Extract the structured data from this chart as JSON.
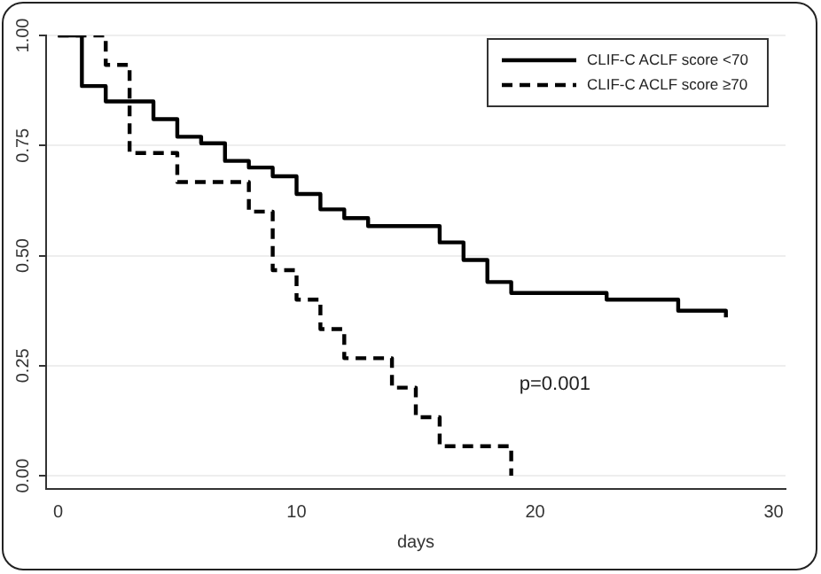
{
  "chart_data": {
    "type": "step",
    "xlabel": "days",
    "series": [
      {
        "name": "CLIF-C ACLF score <70",
        "color": "#000000",
        "line_style": "solid",
        "x": [
          0,
          1,
          2,
          4,
          5,
          6,
          7,
          8,
          9,
          10,
          11,
          12,
          13,
          16,
          17,
          18,
          19,
          23,
          26,
          28
        ],
        "values": [
          1.0,
          0.885,
          0.85,
          0.81,
          0.77,
          0.755,
          0.715,
          0.7,
          0.68,
          0.64,
          0.605,
          0.585,
          0.567,
          0.53,
          0.49,
          0.44,
          0.415,
          0.4,
          0.375,
          0.36
        ]
      },
      {
        "name": "CLIF-C ACLF score ≥70",
        "color": "#000000",
        "line_style": "dashed",
        "x": [
          0,
          2,
          3,
          5,
          8,
          9,
          10,
          11,
          12,
          14,
          15,
          16,
          19
        ],
        "values": [
          1.0,
          0.933,
          0.733,
          0.667,
          0.6,
          0.467,
          0.4,
          0.333,
          0.267,
          0.2,
          0.133,
          0.067,
          0.0
        ]
      }
    ],
    "xlim": [
      -0.5,
      30.5
    ],
    "xticks": [
      0,
      10,
      20,
      30
    ],
    "ylim": [
      -0.03,
      1.0
    ],
    "yticks": [
      {
        "value": 0,
        "label": "0.00"
      },
      {
        "value": 0.25,
        "label": "0.25"
      },
      {
        "value": 0.5,
        "label": "0.50"
      },
      {
        "value": 0.75,
        "label": "0.75"
      },
      {
        "value": 1,
        "label": "1.00"
      }
    ],
    "grid": "y",
    "legend": "top right",
    "marker": "none",
    "annotations": [
      "p=0.001"
    ]
  }
}
